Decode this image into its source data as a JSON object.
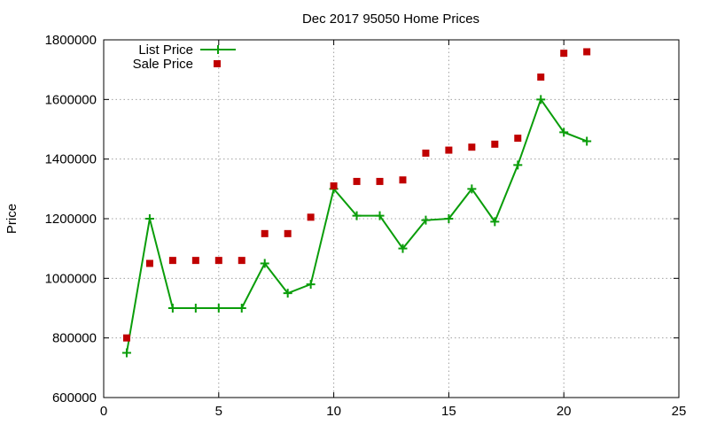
{
  "chart_data": {
    "type": "line",
    "title": "Dec 2017 95050 Home Prices",
    "xlabel": "",
    "ylabel": "Price",
    "xlim": [
      0,
      25
    ],
    "ylim": [
      600000,
      1800000
    ],
    "x_ticks": [
      0,
      5,
      10,
      15,
      20,
      25
    ],
    "y_ticks": [
      600000,
      800000,
      1000000,
      1200000,
      1400000,
      1600000,
      1800000
    ],
    "grid": true,
    "legend_position": "top-left",
    "x": [
      1,
      2,
      3,
      4,
      5,
      6,
      7,
      8,
      9,
      10,
      11,
      12,
      13,
      14,
      15,
      16,
      17,
      18,
      19,
      20,
      21
    ],
    "series": [
      {
        "name": "List Price",
        "style": "linespoints",
        "marker": "plus",
        "color": "#0a9d0a",
        "values": [
          750000,
          1200000,
          900000,
          900000,
          900000,
          900000,
          1050000,
          950000,
          980000,
          1300000,
          1210000,
          1210000,
          1100000,
          1195000,
          1200000,
          1300000,
          1190000,
          1380000,
          1600000,
          1490000,
          1460000
        ]
      },
      {
        "name": "Sale Price",
        "style": "points",
        "marker": "square",
        "color": "#c00000",
        "values": [
          800000,
          1050000,
          1060000,
          1060000,
          1060000,
          1060000,
          1150000,
          1150000,
          1205000,
          1310000,
          1325000,
          1325000,
          1330000,
          1420000,
          1430000,
          1440000,
          1450000,
          1470000,
          1675000,
          1755000,
          1760000
        ]
      }
    ]
  }
}
